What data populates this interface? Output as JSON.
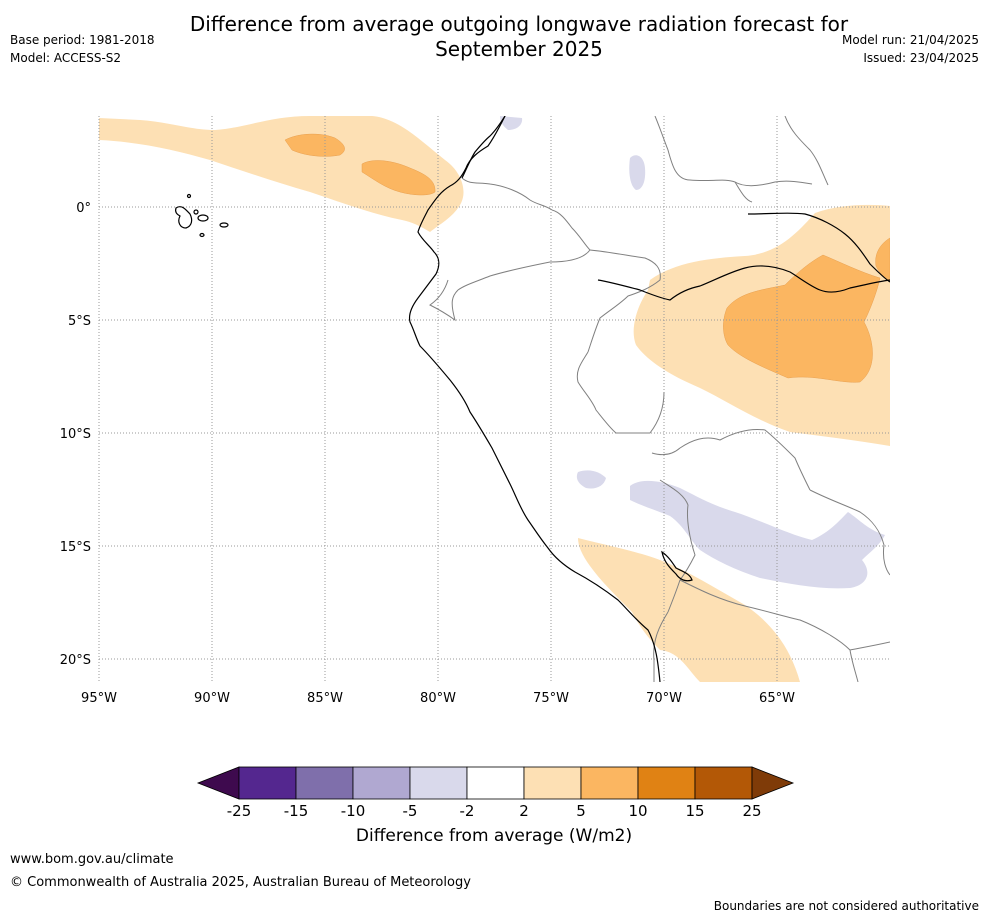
{
  "header": {
    "title_line1": "Difference from average outgoing longwave radiation forecast for",
    "title_line2": "September 2025",
    "base_period": "Base period: 1981-2018",
    "model": "Model: ACCESS-S2",
    "model_run": "Model run: 21/04/2025",
    "issued": "Issued: 23/04/2025"
  },
  "map": {
    "lat_labels": [
      "0°",
      "5°S",
      "10°S",
      "15°S",
      "20°S"
    ],
    "lon_labels": [
      "95°W",
      "90°W",
      "85°W",
      "80°W",
      "75°W",
      "70°W",
      "65°W"
    ],
    "extent": {
      "lon_min": -95,
      "lon_max": -60,
      "lat_min": -21,
      "lat_max": 4
    }
  },
  "colorbar": {
    "ticks": [
      "-25",
      "-15",
      "-10",
      "-5",
      "-2",
      "2",
      "5",
      "10",
      "15",
      "25"
    ],
    "colors": [
      "#3e0a4e",
      "#54278f",
      "#7f6fab",
      "#b0a8d1",
      "#d9d9eb",
      "#ffffff",
      "#fde0b4",
      "#fbb661",
      "#e08214",
      "#b35806",
      "#7f3b08"
    ],
    "label": "Difference from average (W/m2)"
  },
  "footer": {
    "website": "www.bom.gov.au/climate",
    "copyright": "© Commonwealth of Australia 2025, Australian Bureau of Meteorology",
    "disclaimer": "Boundaries are not considered authoritative"
  }
}
